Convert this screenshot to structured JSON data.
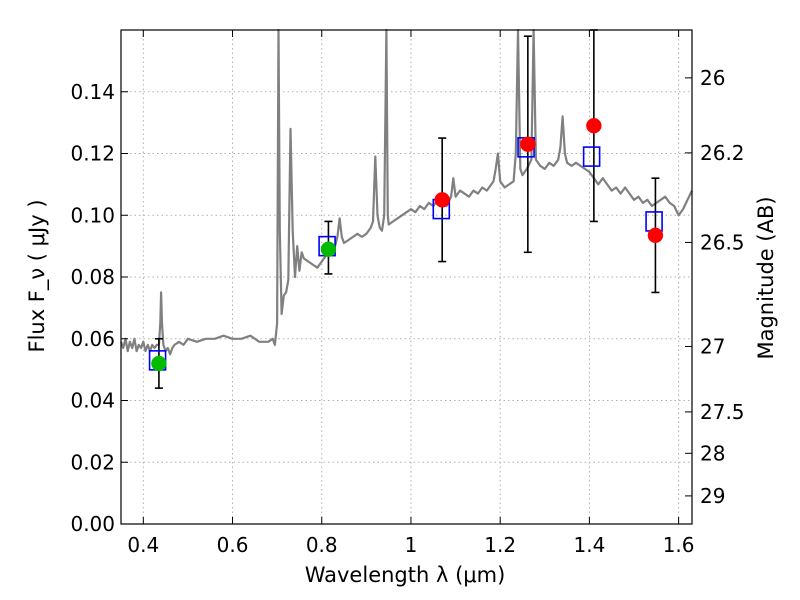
{
  "chart_data": {
    "type": "scatter",
    "title": "",
    "xlabel": "Wavelength  λ (μm)",
    "ylabel": "Flux  F_ν  ( μJy )",
    "y2label": "Magnitude (AB)",
    "xlim": [
      0.35,
      1.63
    ],
    "ylim": [
      0.0,
      0.16
    ],
    "grid": true,
    "x_ticks": [
      0.4,
      0.6,
      0.8,
      1.0,
      1.2,
      1.4,
      1.6
    ],
    "x_tick_labels": [
      "0.4",
      "0.6",
      "0.8",
      "1",
      "1.2",
      "1.4",
      "1.6"
    ],
    "y_ticks": [
      0.0,
      0.02,
      0.04,
      0.06,
      0.08,
      0.1,
      0.12,
      0.14
    ],
    "y_tick_labels": [
      "0.00",
      "0.02",
      "0.04",
      "0.06",
      "0.08",
      "0.10",
      "0.12",
      "0.14"
    ],
    "y2_ticks": [
      {
        "label": "26",
        "flux": 0.1445
      },
      {
        "label": "26.2",
        "flux": 0.1202
      },
      {
        "label": "26.5",
        "flux": 0.0912
      },
      {
        "label": "27",
        "flux": 0.0575
      },
      {
        "label": "27.5",
        "flux": 0.0363
      },
      {
        "label": "28",
        "flux": 0.0229
      },
      {
        "label": "29",
        "flux": 0.0091
      }
    ],
    "colors": {
      "spectrum": "#808080",
      "model_box": "#0000ff",
      "green_point": "#00bb00",
      "red_point": "#ff0000",
      "errorbar": "#000000",
      "grid": "#b0b0b0"
    },
    "series": [
      {
        "type": "line",
        "points": [
          [
            0.35,
            0.059
          ],
          [
            0.355,
            0.057
          ],
          [
            0.36,
            0.06
          ],
          [
            0.365,
            0.056
          ],
          [
            0.37,
            0.059
          ],
          [
            0.375,
            0.057
          ],
          [
            0.38,
            0.06
          ],
          [
            0.385,
            0.056
          ],
          [
            0.39,
            0.058
          ],
          [
            0.395,
            0.057
          ],
          [
            0.4,
            0.059
          ],
          [
            0.405,
            0.056
          ],
          [
            0.41,
            0.058
          ],
          [
            0.415,
            0.056
          ],
          [
            0.42,
            0.058
          ],
          [
            0.425,
            0.057
          ],
          [
            0.43,
            0.058
          ],
          [
            0.435,
            0.058
          ],
          [
            0.438,
            0.065
          ],
          [
            0.44,
            0.075
          ],
          [
            0.442,
            0.065
          ],
          [
            0.445,
            0.058
          ],
          [
            0.45,
            0.056
          ],
          [
            0.455,
            0.057
          ],
          [
            0.46,
            0.055
          ],
          [
            0.465,
            0.057
          ],
          [
            0.47,
            0.058
          ],
          [
            0.48,
            0.059
          ],
          [
            0.49,
            0.058
          ],
          [
            0.5,
            0.06
          ],
          [
            0.52,
            0.059
          ],
          [
            0.54,
            0.06
          ],
          [
            0.56,
            0.06
          ],
          [
            0.58,
            0.061
          ],
          [
            0.6,
            0.06
          ],
          [
            0.62,
            0.06
          ],
          [
            0.64,
            0.061
          ],
          [
            0.66,
            0.059
          ],
          [
            0.68,
            0.059
          ],
          [
            0.69,
            0.06
          ],
          [
            0.695,
            0.058
          ],
          [
            0.7,
            0.065
          ],
          [
            0.703,
            0.16
          ],
          [
            0.706,
            0.095
          ],
          [
            0.71,
            0.068
          ],
          [
            0.715,
            0.074
          ],
          [
            0.72,
            0.075
          ],
          [
            0.725,
            0.079
          ],
          [
            0.73,
            0.128
          ],
          [
            0.735,
            0.095
          ],
          [
            0.74,
            0.08
          ],
          [
            0.745,
            0.09
          ],
          [
            0.75,
            0.082
          ],
          [
            0.755,
            0.088
          ],
          [
            0.76,
            0.086
          ],
          [
            0.77,
            0.085
          ],
          [
            0.78,
            0.084
          ],
          [
            0.79,
            0.083
          ],
          [
            0.8,
            0.085
          ],
          [
            0.81,
            0.087
          ],
          [
            0.82,
            0.089
          ],
          [
            0.83,
            0.09
          ],
          [
            0.835,
            0.093
          ],
          [
            0.84,
            0.099
          ],
          [
            0.845,
            0.093
          ],
          [
            0.85,
            0.091
          ],
          [
            0.86,
            0.092
          ],
          [
            0.87,
            0.093
          ],
          [
            0.88,
            0.094
          ],
          [
            0.89,
            0.093
          ],
          [
            0.9,
            0.094
          ],
          [
            0.91,
            0.096
          ],
          [
            0.915,
            0.098
          ],
          [
            0.92,
            0.119
          ],
          [
            0.925,
            0.1
          ],
          [
            0.93,
            0.096
          ],
          [
            0.935,
            0.095
          ],
          [
            0.94,
            0.1
          ],
          [
            0.945,
            0.16
          ],
          [
            0.948,
            0.1
          ],
          [
            0.95,
            0.097
          ],
          [
            0.96,
            0.098
          ],
          [
            0.97,
            0.099
          ],
          [
            0.98,
            0.1
          ],
          [
            0.99,
            0.101
          ],
          [
            1.0,
            0.102
          ],
          [
            1.01,
            0.101
          ],
          [
            1.02,
            0.103
          ],
          [
            1.03,
            0.102
          ],
          [
            1.04,
            0.104
          ],
          [
            1.05,
            0.103
          ],
          [
            1.06,
            0.105
          ],
          [
            1.08,
            0.103
          ],
          [
            1.09,
            0.106
          ],
          [
            1.095,
            0.112
          ],
          [
            1.1,
            0.106
          ],
          [
            1.11,
            0.108
          ],
          [
            1.12,
            0.107
          ],
          [
            1.13,
            0.106
          ],
          [
            1.14,
            0.108
          ],
          [
            1.15,
            0.107
          ],
          [
            1.16,
            0.109
          ],
          [
            1.17,
            0.108
          ],
          [
            1.18,
            0.11
          ],
          [
            1.185,
            0.111
          ],
          [
            1.19,
            0.115
          ],
          [
            1.195,
            0.12
          ],
          [
            1.2,
            0.111
          ],
          [
            1.21,
            0.109
          ],
          [
            1.22,
            0.11
          ],
          [
            1.23,
            0.111
          ],
          [
            1.235,
            0.12
          ],
          [
            1.24,
            0.16
          ],
          [
            1.245,
            0.115
          ],
          [
            1.25,
            0.113
          ],
          [
            1.26,
            0.115
          ],
          [
            1.27,
            0.118
          ],
          [
            1.275,
            0.16
          ],
          [
            1.28,
            0.118
          ],
          [
            1.29,
            0.116
          ],
          [
            1.3,
            0.115
          ],
          [
            1.31,
            0.117
          ],
          [
            1.32,
            0.116
          ],
          [
            1.33,
            0.118
          ],
          [
            1.335,
            0.122
          ],
          [
            1.34,
            0.132
          ],
          [
            1.345,
            0.12
          ],
          [
            1.35,
            0.117
          ],
          [
            1.36,
            0.116
          ],
          [
            1.37,
            0.117
          ],
          [
            1.38,
            0.116
          ],
          [
            1.39,
            0.115
          ],
          [
            1.4,
            0.114
          ],
          [
            1.41,
            0.112
          ],
          [
            1.42,
            0.11
          ],
          [
            1.43,
            0.112
          ],
          [
            1.44,
            0.11
          ],
          [
            1.45,
            0.108
          ],
          [
            1.46,
            0.109
          ],
          [
            1.47,
            0.107
          ],
          [
            1.48,
            0.109
          ],
          [
            1.49,
            0.107
          ],
          [
            1.5,
            0.105
          ],
          [
            1.51,
            0.106
          ],
          [
            1.52,
            0.104
          ],
          [
            1.53,
            0.105
          ],
          [
            1.54,
            0.103
          ],
          [
            1.55,
            0.104
          ],
          [
            1.56,
            0.105
          ],
          [
            1.57,
            0.106
          ],
          [
            1.58,
            0.104
          ],
          [
            1.59,
            0.103
          ],
          [
            1.6,
            0.1
          ],
          [
            1.61,
            0.102
          ],
          [
            1.62,
            0.105
          ],
          [
            1.63,
            0.108
          ]
        ]
      },
      {
        "type": "box",
        "points": [
          {
            "x": 0.432,
            "y": 0.053
          },
          {
            "x": 0.812,
            "y": 0.09
          },
          {
            "x": 1.068,
            "y": 0.102
          },
          {
            "x": 1.258,
            "y": 0.122
          },
          {
            "x": 1.405,
            "y": 0.119
          },
          {
            "x": 1.545,
            "y": 0.098
          }
        ]
      },
      {
        "type": "errorbar",
        "points": [
          {
            "x": 0.435,
            "y": 0.052,
            "ylo": 0.044,
            "yhi": 0.06,
            "color": "green"
          },
          {
            "x": 0.815,
            "y": 0.089,
            "ylo": 0.081,
            "yhi": 0.098,
            "color": "green"
          },
          {
            "x": 1.07,
            "y": 0.105,
            "ylo": 0.085,
            "yhi": 0.125,
            "color": "red"
          },
          {
            "x": 1.262,
            "y": 0.123,
            "ylo": 0.088,
            "yhi": 0.158,
            "color": "red"
          },
          {
            "x": 1.41,
            "y": 0.129,
            "ylo": 0.098,
            "yhi": 0.16,
            "color": "red"
          },
          {
            "x": 1.548,
            "y": 0.0935,
            "ylo": 0.075,
            "yhi": 0.112,
            "color": "red"
          }
        ]
      }
    ]
  }
}
